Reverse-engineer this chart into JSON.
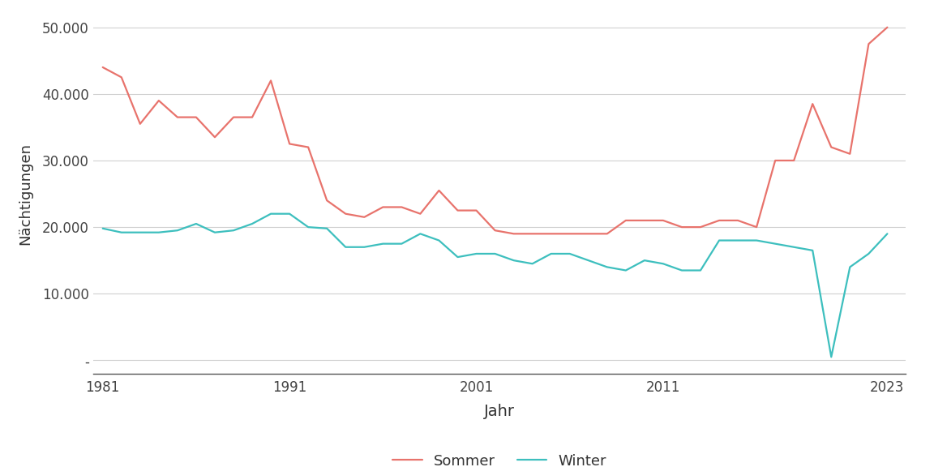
{
  "years": [
    1981,
    1982,
    1983,
    1984,
    1985,
    1986,
    1987,
    1988,
    1989,
    1990,
    1991,
    1992,
    1993,
    1994,
    1995,
    1996,
    1997,
    1998,
    1999,
    2000,
    2001,
    2002,
    2003,
    2004,
    2005,
    2006,
    2007,
    2008,
    2009,
    2010,
    2011,
    2012,
    2013,
    2014,
    2015,
    2016,
    2017,
    2018,
    2019,
    2020,
    2021,
    2022,
    2023
  ],
  "sommer": [
    44000,
    42500,
    35500,
    39000,
    36500,
    36500,
    33500,
    36500,
    36500,
    42000,
    32500,
    32000,
    24000,
    22000,
    21500,
    23000,
    23000,
    22000,
    25500,
    22500,
    22500,
    19500,
    19000,
    19000,
    19000,
    19000,
    19000,
    19000,
    21000,
    21000,
    21000,
    20000,
    20000,
    21000,
    21000,
    20000,
    30000,
    30000,
    38500,
    32000,
    31000,
    47500,
    50000
  ],
  "winter": [
    19800,
    19200,
    19200,
    19200,
    19500,
    20500,
    19200,
    19500,
    20500,
    22000,
    22000,
    20000,
    19800,
    17000,
    17000,
    17500,
    17500,
    19000,
    18000,
    15500,
    16000,
    16000,
    15000,
    14500,
    16000,
    16000,
    15000,
    14000,
    13500,
    15000,
    14500,
    13500,
    13500,
    18000,
    18000,
    18000,
    17500,
    17000,
    16500,
    500,
    14000,
    16000,
    19000
  ],
  "sommer_color": "#E8736C",
  "winter_color": "#3DBFBE",
  "background_color": "#ffffff",
  "grid_color": "#d0d0d0",
  "xlabel": "Jahr",
  "ylabel": "Nächtigungen",
  "xlim": [
    1980.5,
    2024
  ],
  "ylim": [
    -2000,
    52000
  ],
  "yticks": [
    0,
    10000,
    20000,
    30000,
    40000,
    50000
  ],
  "xticks": [
    1981,
    1991,
    2001,
    2011,
    2023
  ],
  "legend_labels": [
    "Sommer",
    "Winter"
  ],
  "line_width": 1.6
}
